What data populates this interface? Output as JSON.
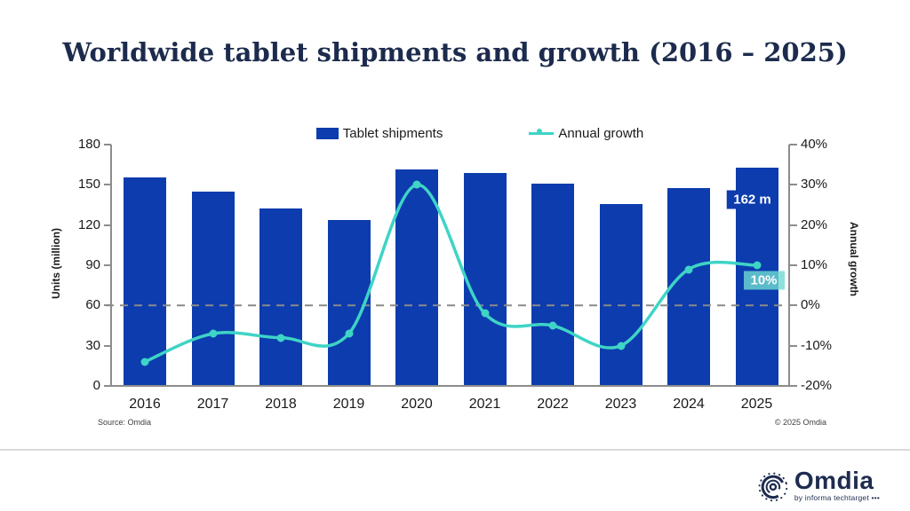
{
  "title": "Worldwide tablet shipments and growth (2016 – 2025)",
  "legend": {
    "shipments": "Tablet shipments",
    "growth": "Annual growth"
  },
  "colors": {
    "bar_blue": "#0c3cae",
    "line_teal": "#3ed4c6",
    "title_navy": "#1c2b4d",
    "axis_gray": "#8c8c8c",
    "logo_navy": "#1e2c4f",
    "growth_callout_bg": "rgba(111,219,210,0.8)"
  },
  "chart_data": {
    "type": "bar+line combo",
    "title": "Worldwide tablet shipments and growth (2016 – 2025)",
    "categories": [
      "2016",
      "2017",
      "2018",
      "2019",
      "2020",
      "2021",
      "2022",
      "2023",
      "2024",
      "2025"
    ],
    "series": [
      {
        "name": "Tablet shipments",
        "type": "bar",
        "axis": "left",
        "unit": "million units",
        "values": [
          155,
          144,
          132,
          123,
          161,
          158,
          150,
          135,
          147,
          162
        ]
      },
      {
        "name": "Annual growth",
        "type": "line",
        "axis": "right",
        "unit": "%",
        "values": [
          -14,
          -7,
          -8,
          -7,
          30,
          -2,
          -5,
          -10,
          9,
          10
        ]
      }
    ],
    "left_axis": {
      "label": "Units (million)",
      "min": 0,
      "max": 180,
      "ticks": [
        0,
        30,
        60,
        90,
        120,
        150,
        180
      ]
    },
    "right_axis": {
      "label": "Annual growth",
      "min": -20,
      "max": 40,
      "ticks": [
        -20,
        -10,
        0,
        10,
        20,
        30,
        40
      ],
      "tick_suffix": "%"
    },
    "zero_line": {
      "axis": "right",
      "value": 0,
      "style": "dashed gray"
    },
    "annotations": [
      {
        "text": "162 m",
        "category_index": 9,
        "axis": "left",
        "value": 139,
        "dx": -5,
        "style": "blue"
      },
      {
        "text": "10%",
        "category_index": 9,
        "axis": "right",
        "value": 6.3,
        "dx": 8,
        "style": "teal"
      }
    ],
    "legend_position": "top",
    "grid": "off"
  },
  "footer": {
    "source": "Source: Omdia",
    "copyright": "© 2025 Omdia"
  },
  "logo": {
    "name": "Omdia",
    "tagline": "by informa techtarget •••"
  }
}
